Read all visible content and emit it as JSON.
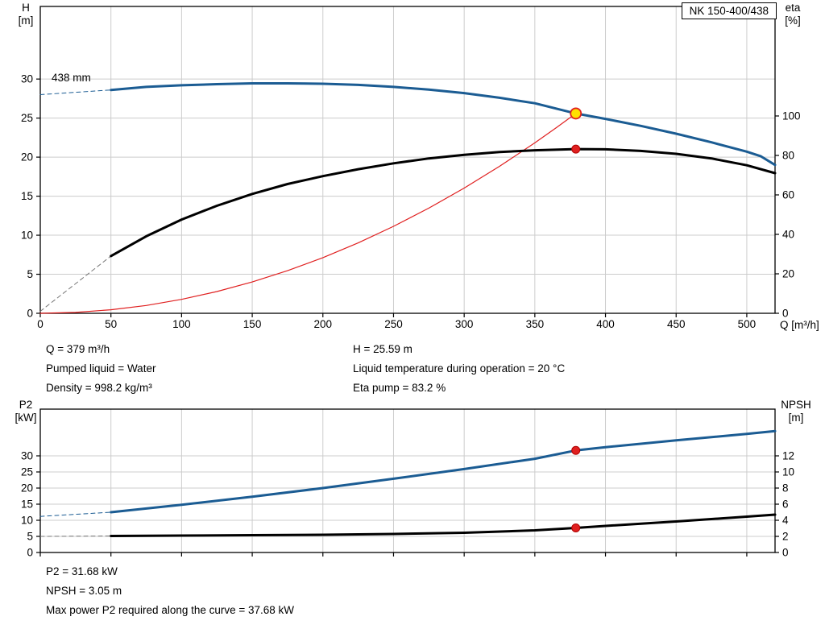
{
  "pump": {
    "model": "NK 150-400/438"
  },
  "details": {
    "left": [
      "Q = 379 m³/h",
      "Pumped liquid = Water",
      "Density = 998.2 kg/m³"
    ],
    "right": [
      "H = 25.59 m",
      "Liquid temperature during operation = 20 °C",
      "Eta pump = 83.2 %"
    ],
    "bottom": [
      "P2 = 31.68 kW",
      "NPSH = 3.05 m",
      "Max power P2 required along the curve = 37.68 kW"
    ]
  },
  "colors": {
    "grid": "#cccccc",
    "axis": "#000000",
    "background": "#ffffff",
    "curve_blue": "#1b5c93",
    "curve_black": "#000000",
    "curve_red": "#e02020",
    "marker_yellow": "#ffe000"
  },
  "chart_data": [
    {
      "type": "line",
      "name": "qh-eta-chart",
      "curve_label": "438 mm",
      "x": {
        "label": "Q [m³/h]",
        "min": 0,
        "max": 520,
        "ticks": [
          0,
          50,
          100,
          150,
          200,
          250,
          300,
          350,
          400,
          450,
          500
        ],
        "show_labels": true
      },
      "y_left": {
        "label": "H",
        "unit": "[m]",
        "min": 0,
        "max": 39.3,
        "ticks": [
          0,
          5,
          10,
          15,
          20,
          25,
          30
        ]
      },
      "y_right": {
        "label": "eta",
        "unit": "[%]",
        "min": 0,
        "max": 155.5,
        "ticks": [
          0,
          20,
          40,
          60,
          80,
          100
        ]
      },
      "grid": true,
      "series": [
        {
          "name": "head-curve-extrapolated",
          "axis": "left",
          "color": "#1b5c93",
          "width": 1,
          "dash": "5,4",
          "points": [
            [
              0,
              28.0
            ],
            [
              50,
              28.6
            ]
          ]
        },
        {
          "name": "eta-curve-extrapolated",
          "axis": "right",
          "color": "#777777",
          "width": 1,
          "dash": "5,4",
          "points": [
            [
              0,
              1
            ],
            [
              50,
              29
            ]
          ]
        },
        {
          "name": "system-curve",
          "axis": "left",
          "color": "#e02020",
          "width": 1.2,
          "points": [
            [
              0,
              0
            ],
            [
              25,
              0.11
            ],
            [
              50,
              0.45
            ],
            [
              75,
              1.0
            ],
            [
              100,
              1.78
            ],
            [
              125,
              2.78
            ],
            [
              150,
              4.01
            ],
            [
              175,
              5.46
            ],
            [
              200,
              7.13
            ],
            [
              225,
              9.02
            ],
            [
              250,
              11.14
            ],
            [
              275,
              13.47
            ],
            [
              300,
              16.04
            ],
            [
              325,
              18.82
            ],
            [
              350,
              21.83
            ],
            [
              365,
              23.74
            ],
            [
              379,
              25.59
            ]
          ]
        },
        {
          "name": "eta-curve",
          "axis": "right",
          "color": "#000000",
          "width": 3,
          "points": [
            [
              50,
              29
            ],
            [
              75,
              39
            ],
            [
              100,
              47.5
            ],
            [
              125,
              54.5
            ],
            [
              150,
              60.5
            ],
            [
              175,
              65.5
            ],
            [
              200,
              69.5
            ],
            [
              225,
              73
            ],
            [
              250,
              76
            ],
            [
              275,
              78.5
            ],
            [
              300,
              80.3
            ],
            [
              325,
              81.7
            ],
            [
              350,
              82.6
            ],
            [
              379,
              83.2
            ],
            [
              400,
              83.1
            ],
            [
              425,
              82.3
            ],
            [
              450,
              80.8
            ],
            [
              475,
              78.5
            ],
            [
              500,
              75
            ],
            [
              520,
              71
            ]
          ]
        },
        {
          "name": "head-curve",
          "axis": "left",
          "color": "#1b5c93",
          "width": 3,
          "points": [
            [
              50,
              28.6
            ],
            [
              75,
              29.0
            ],
            [
              100,
              29.2
            ],
            [
              125,
              29.35
            ],
            [
              150,
              29.45
            ],
            [
              175,
              29.45
            ],
            [
              200,
              29.4
            ],
            [
              225,
              29.25
            ],
            [
              250,
              29.0
            ],
            [
              275,
              28.65
            ],
            [
              300,
              28.2
            ],
            [
              325,
              27.6
            ],
            [
              350,
              26.9
            ],
            [
              379,
              25.59
            ],
            [
              400,
              24.9
            ],
            [
              425,
              24.0
            ],
            [
              450,
              23.0
            ],
            [
              475,
              21.9
            ],
            [
              500,
              20.7
            ],
            [
              510,
              20.1
            ],
            [
              520,
              19.0
            ]
          ]
        }
      ],
      "markers": [
        {
          "name": "duty-point-qh",
          "axis": "left",
          "x": 379,
          "y": 25.59,
          "r": 6.5,
          "fill": "#ffe000",
          "stroke": "#e02020",
          "stroke_width": 1.8
        },
        {
          "name": "duty-point-eta",
          "axis": "right",
          "x": 379,
          "y": 83.2,
          "r": 5,
          "fill": "#e02020",
          "stroke": "#b00000",
          "stroke_width": 1
        }
      ]
    },
    {
      "type": "line",
      "name": "p2-npsh-chart",
      "x": {
        "label": "",
        "min": 0,
        "max": 520,
        "ticks": [
          0,
          50,
          100,
          150,
          200,
          250,
          300,
          350,
          400,
          450,
          500
        ],
        "show_labels": false
      },
      "y_left": {
        "label": "P2",
        "unit": "[kW]",
        "min": 0,
        "max": 44.5,
        "ticks": [
          0,
          5,
          10,
          15,
          20,
          25,
          30
        ]
      },
      "y_right": {
        "label": "NPSH",
        "unit": "[m]",
        "min": 0,
        "max": 17.8,
        "ticks": [
          0,
          2,
          4,
          6,
          8,
          10,
          12
        ]
      },
      "grid": true,
      "series": [
        {
          "name": "p2-curve-extrapolated",
          "axis": "left",
          "color": "#1b5c93",
          "width": 1,
          "dash": "5,4",
          "points": [
            [
              0,
              11.2
            ],
            [
              50,
              12.5
            ]
          ]
        },
        {
          "name": "npsh-curve-extrapolated",
          "axis": "right",
          "color": "#777777",
          "width": 1,
          "dash": "5,4",
          "points": [
            [
              0,
              2.0
            ],
            [
              50,
              2.05
            ]
          ]
        },
        {
          "name": "npsh-curve",
          "axis": "right",
          "color": "#000000",
          "width": 3,
          "points": [
            [
              50,
              2.05
            ],
            [
              100,
              2.1
            ],
            [
              150,
              2.15
            ],
            [
              200,
              2.2
            ],
            [
              250,
              2.3
            ],
            [
              300,
              2.45
            ],
            [
              350,
              2.75
            ],
            [
              379,
              3.05
            ],
            [
              400,
              3.3
            ],
            [
              450,
              3.85
            ],
            [
              500,
              4.45
            ],
            [
              520,
              4.7
            ]
          ]
        },
        {
          "name": "p2-curve",
          "axis": "left",
          "color": "#1b5c93",
          "width": 3,
          "points": [
            [
              50,
              12.5
            ],
            [
              100,
              14.8
            ],
            [
              150,
              17.3
            ],
            [
              200,
              20.0
            ],
            [
              250,
              22.9
            ],
            [
              300,
              25.9
            ],
            [
              350,
              29.1
            ],
            [
              379,
              31.68
            ],
            [
              400,
              32.7
            ],
            [
              450,
              34.8
            ],
            [
              500,
              36.8
            ],
            [
              520,
              37.68
            ]
          ]
        }
      ],
      "markers": [
        {
          "name": "duty-point-p2",
          "axis": "left",
          "x": 379,
          "y": 31.68,
          "r": 5,
          "fill": "#e02020",
          "stroke": "#b00000",
          "stroke_width": 1
        },
        {
          "name": "duty-point-npsh",
          "axis": "right",
          "x": 379,
          "y": 3.05,
          "r": 5,
          "fill": "#e02020",
          "stroke": "#b00000",
          "stroke_width": 1
        }
      ]
    }
  ]
}
